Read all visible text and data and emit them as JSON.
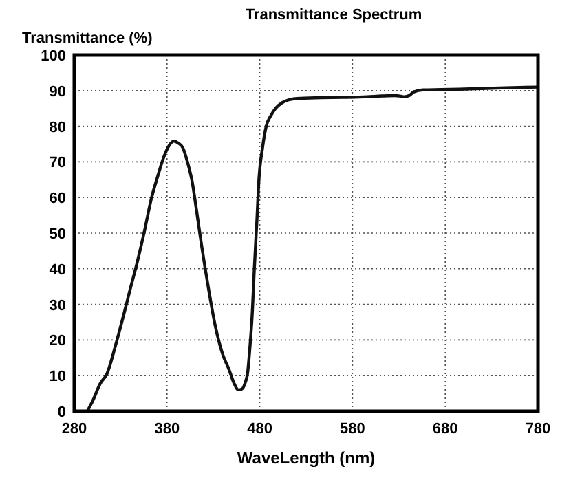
{
  "chart_data": {
    "type": "line",
    "title": "Transmittance Spectrum",
    "ylabel": "Transmittance (%)",
    "xlabel": "WaveLength (nm)",
    "x": [
      294,
      300,
      308,
      315,
      325,
      333,
      340,
      348,
      356,
      363,
      370,
      376,
      382,
      387,
      392,
      397,
      402,
      407,
      412,
      417,
      425,
      432,
      440,
      447,
      452,
      457,
      461,
      464,
      467,
      469,
      472,
      474,
      477,
      479,
      483,
      487,
      492,
      497,
      504,
      511,
      520,
      546,
      570,
      596,
      612,
      626,
      631,
      636,
      641,
      646,
      656,
      675,
      695,
      720,
      745,
      780
    ],
    "series": [
      {
        "color": "#111111",
        "values": [
          0,
          3,
          7.8,
          10.4,
          19,
          26.8,
          34,
          42,
          51,
          59.6,
          66,
          71,
          74.5,
          75.8,
          75.3,
          74,
          70,
          64.6,
          56,
          47,
          34,
          24,
          16,
          11.6,
          8,
          6,
          6.3,
          7.8,
          11,
          16.7,
          28,
          39.4,
          54,
          64.6,
          74,
          80,
          83,
          85,
          86.6,
          87.4,
          87.8,
          88,
          88.1,
          88.3,
          88.5,
          88.6,
          88.5,
          88.3,
          88.6,
          89.6,
          90.2,
          90.3,
          90.4,
          90.6,
          90.8,
          91
        ]
      }
    ],
    "xlim": [
      280,
      780
    ],
    "ylim": [
      0,
      100
    ],
    "xticks": [
      280,
      380,
      480,
      580,
      680,
      780
    ],
    "yticks": [
      0,
      10,
      20,
      30,
      40,
      50,
      60,
      70,
      80,
      90,
      100
    ],
    "grid": true,
    "marker": "none",
    "line_style": "solid"
  }
}
